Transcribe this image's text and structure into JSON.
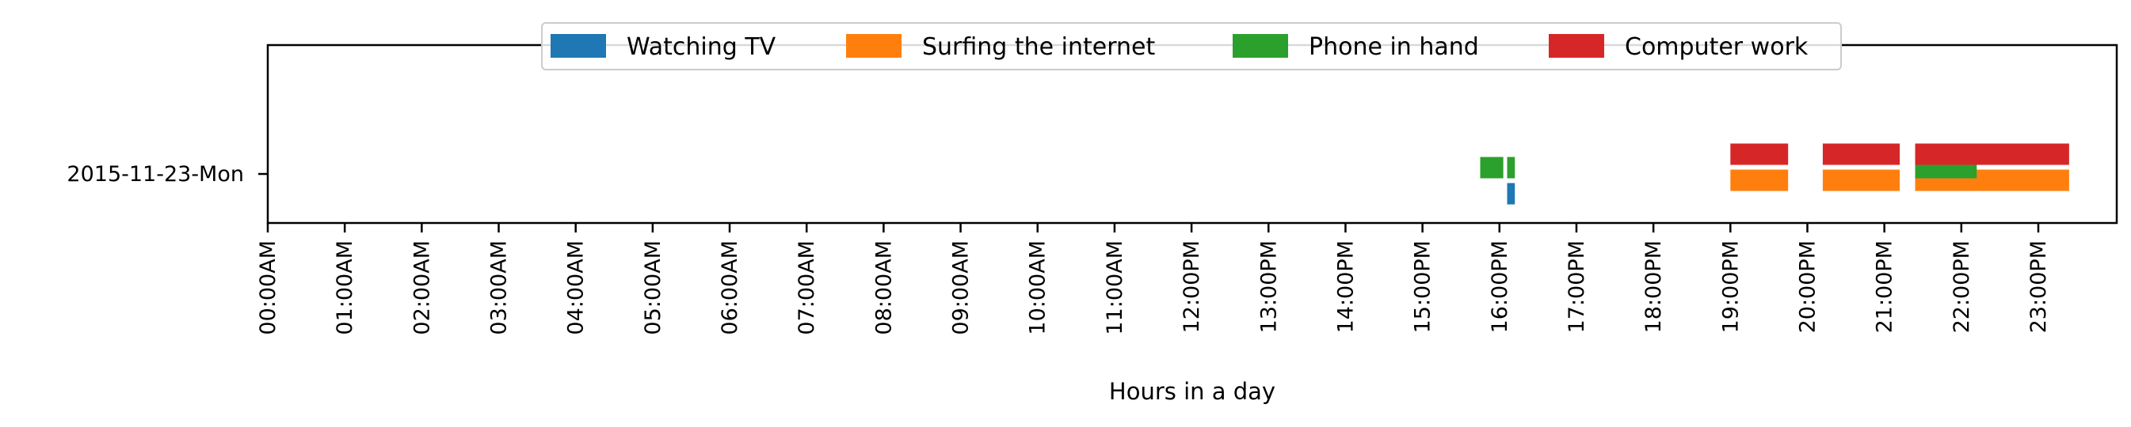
{
  "chart_data": {
    "type": "bar",
    "orientation": "horizontal-timeline",
    "title": "",
    "xlabel": "Hours in a day",
    "ylabel": "",
    "xlim": [
      0,
      24
    ],
    "grid": false,
    "legend_position": "top-center",
    "x_ticks": [
      "00:00AM",
      "01:00AM",
      "02:00AM",
      "03:00AM",
      "04:00AM",
      "05:00AM",
      "06:00AM",
      "07:00AM",
      "08:00AM",
      "09:00AM",
      "10:00AM",
      "11:00AM",
      "12:00PM",
      "13:00PM",
      "14:00PM",
      "15:00PM",
      "16:00PM",
      "17:00PM",
      "18:00PM",
      "19:00PM",
      "20:00PM",
      "21:00PM",
      "22:00PM",
      "23:00PM"
    ],
    "y_categories": [
      "2015-11-23-Mon"
    ],
    "series": [
      {
        "name": "Watching TV",
        "color": "#1f77b4",
        "intervals": [
          {
            "day": "2015-11-23-Mon",
            "start": 16.1,
            "end": 16.2
          }
        ]
      },
      {
        "name": "Surfing the internet",
        "color": "#ff7f0e",
        "intervals": [
          {
            "day": "2015-11-23-Mon",
            "start": 19.0,
            "end": 19.75
          },
          {
            "day": "2015-11-23-Mon",
            "start": 20.2,
            "end": 21.2
          },
          {
            "day": "2015-11-23-Mon",
            "start": 21.4,
            "end": 23.4
          }
        ]
      },
      {
        "name": "Phone in hand",
        "color": "#2ca02c",
        "intervals": [
          {
            "day": "2015-11-23-Mon",
            "start": 15.75,
            "end": 16.05
          },
          {
            "day": "2015-11-23-Mon",
            "start": 16.1,
            "end": 16.2
          },
          {
            "day": "2015-11-23-Mon",
            "start": 21.4,
            "end": 22.2
          }
        ]
      },
      {
        "name": "Computer work",
        "color": "#d62728",
        "intervals": [
          {
            "day": "2015-11-23-Mon",
            "start": 19.0,
            "end": 19.75
          },
          {
            "day": "2015-11-23-Mon",
            "start": 20.2,
            "end": 21.2
          },
          {
            "day": "2015-11-23-Mon",
            "start": 21.4,
            "end": 23.4
          }
        ]
      }
    ]
  }
}
